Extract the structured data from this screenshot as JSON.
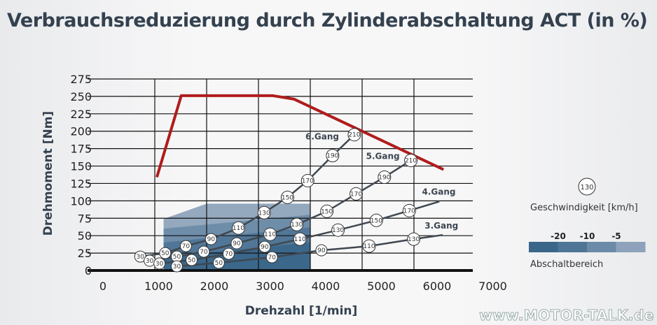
{
  "chart_data": {
    "type": "line",
    "title": "Verbrauchsreduzierung durch Zylinderabschaltung ACT  (in %)",
    "xlabel": "Drehzahl [1/min]",
    "ylabel": "Drehmoment [Nm]",
    "xlim": [
      0,
      7000
    ],
    "ylim": [
      0,
      275
    ],
    "xticks": [
      "0",
      "1000",
      "2000",
      "3000",
      "4000",
      "5000",
      "6000",
      "7000"
    ],
    "yticks": [
      "0",
      "25",
      "50",
      "75",
      "100",
      "125",
      "150",
      "175",
      "200",
      "225",
      "250",
      "275"
    ],
    "grid": true,
    "full_load_curve": {
      "color": "#b01c1c",
      "points": [
        [
          1040,
          134
        ],
        [
          1510,
          251
        ],
        [
          3280,
          251
        ],
        [
          3690,
          246
        ],
        [
          6570,
          145
        ]
      ]
    },
    "gears": [
      {
        "name": "6.Gang",
        "label_pos": [
          4230,
          188
        ],
        "points": [
          [
            720,
            20,
            "30"
          ],
          [
            1200,
            25,
            "50"
          ],
          [
            1600,
            35,
            "70"
          ],
          [
            2085,
            45,
            "90"
          ],
          [
            2615,
            61,
            "110"
          ],
          [
            3110,
            83,
            "130"
          ],
          [
            3560,
            105,
            "150"
          ],
          [
            3950,
            129,
            "170"
          ],
          [
            4430,
            165,
            "190"
          ],
          [
            4850,
            195,
            "210"
          ]
        ]
      },
      {
        "name": "5.Gang",
        "label_pos": [
          5400,
          160
        ],
        "points": [
          [
            900,
            14,
            "30"
          ],
          [
            1425,
            20,
            "50"
          ],
          [
            1945,
            27,
            "70"
          ],
          [
            2580,
            39,
            "90"
          ],
          [
            3225,
            52,
            "110"
          ],
          [
            3740,
            66,
            "130"
          ],
          [
            4320,
            85,
            "150"
          ],
          [
            4885,
            110,
            "170"
          ],
          [
            5430,
            134,
            "190"
          ],
          [
            5940,
            158,
            "210"
          ]
        ]
      },
      {
        "name": "4.Gang",
        "label_pos": [
          6480,
          109
        ],
        "points": [
          [
            1090,
            10,
            "30"
          ],
          [
            1710,
            15,
            "50"
          ],
          [
            2425,
            24,
            "70"
          ],
          [
            3120,
            34,
            "90"
          ],
          [
            3800,
            45,
            "110"
          ],
          [
            4535,
            58,
            "130"
          ],
          [
            5275,
            72,
            "150"
          ],
          [
            5910,
            86,
            "170"
          ],
          [
            6490,
            99,
            ""
          ]
        ]
      },
      {
        "name": "3.Gang",
        "label_pos": [
          6530,
          60
        ],
        "points": [
          [
            1425,
            6,
            "30"
          ],
          [
            2235,
            11,
            "50"
          ],
          [
            3260,
            19,
            "70"
          ],
          [
            4215,
            29,
            "90"
          ],
          [
            5135,
            35,
            "110"
          ],
          [
            5995,
            45,
            "130"
          ],
          [
            6555,
            51,
            ""
          ]
        ]
      }
    ],
    "deactivation_zones": [
      {
        "reduction": "-5",
        "color": "#8ea3bb",
        "top": [
          [
            1170,
            74
          ],
          [
            2000,
            96
          ],
          [
            4000,
            96
          ]
        ]
      },
      {
        "reduction": "-10",
        "color": "#6c8ba8",
        "top": [
          [
            1170,
            60
          ],
          [
            4000,
            80
          ]
        ]
      },
      {
        "reduction": "-20",
        "color": "#4f7596",
        "top": [
          [
            1170,
            40
          ],
          [
            4000,
            62
          ]
        ]
      },
      {
        "reduction": "",
        "color": "#3a6689",
        "top": [
          [
            1170,
            20
          ],
          [
            4000,
            40
          ]
        ]
      }
    ],
    "legend": {
      "speed_sample": "130",
      "speed_label": "Geschwindigkeit [km/h]",
      "zone_label": "Abschaltbereich",
      "zone_ticks": [
        "-20",
        "-10",
        "-5"
      ],
      "zone_colors": [
        "#3a6689",
        "#4f7596",
        "#6c8ba8",
        "#8ea3bb"
      ]
    }
  },
  "watermark": "www.MOTOR-TALK.de"
}
